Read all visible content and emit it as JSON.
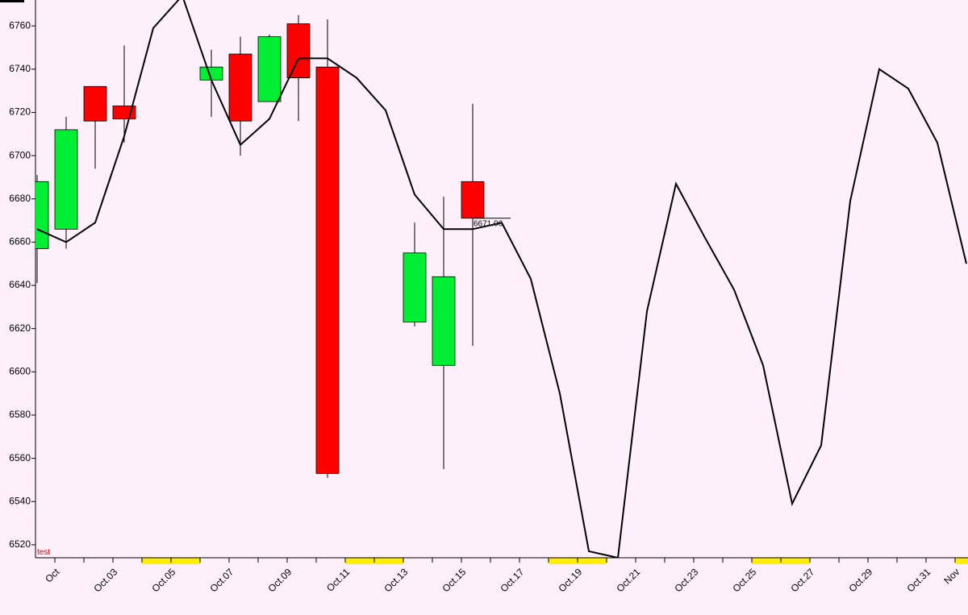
{
  "chart_data": {
    "type": "candlestick",
    "categories": [
      "Oct",
      null,
      "Oct.03",
      null,
      "Oct.05",
      null,
      "Oct.07",
      null,
      "Oct.09",
      null,
      "Oct.11",
      null,
      "Oct.13",
      null,
      "Oct.15",
      null,
      "Oct.17",
      null,
      "Oct.19",
      null,
      "Oct.21",
      null,
      "Oct.23",
      null,
      "Oct.25",
      null,
      "Oct.27",
      null,
      "Oct.29",
      null,
      "Oct.31",
      "Nov",
      null
    ],
    "open": [
      6657,
      6666,
      6732,
      6723,
      null,
      null,
      6735,
      6747,
      6725,
      6761,
      6741,
      null,
      null,
      6623,
      6603,
      6688,
      null,
      null,
      null,
      null,
      null,
      null,
      null,
      null,
      null,
      null,
      null,
      null,
      null,
      null,
      null,
      null,
      null
    ],
    "high": [
      6691,
      6718,
      6732,
      6751,
      null,
      null,
      6749,
      6755,
      6756,
      6765,
      6763,
      null,
      null,
      6669,
      6681,
      6724,
      null,
      null,
      null,
      null,
      null,
      null,
      null,
      null,
      null,
      null,
      null,
      null,
      null,
      null,
      null,
      null,
      null
    ],
    "low": [
      6641,
      6657,
      6694,
      6706,
      null,
      null,
      6718,
      6700,
      6725,
      6716,
      6551,
      null,
      null,
      6621,
      6555,
      6612,
      null,
      null,
      null,
      null,
      null,
      null,
      null,
      null,
      null,
      null,
      null,
      null,
      null,
      null,
      null,
      null,
      null
    ],
    "close": [
      6688,
      6712,
      6716,
      6717,
      null,
      null,
      6741,
      6716,
      6755,
      6736,
      6553,
      null,
      null,
      6655,
      6644,
      6671.06,
      null,
      null,
      null,
      null,
      null,
      null,
      null,
      null,
      null,
      null,
      null,
      null,
      null,
      null,
      null,
      null,
      null
    ],
    "up_color": "#00ee33",
    "down_color": "#ff0000",
    "line": {
      "color": "#000000",
      "values": [
        6666,
        6660,
        6669,
        6709,
        6759,
        6774,
        6735,
        6705,
        6717,
        6745,
        6745,
        6736,
        6721,
        6682,
        6666,
        6666,
        6669,
        6643,
        6590,
        6517,
        6514,
        6628,
        6687,
        6662,
        6638,
        6603,
        6539,
        6566,
        6679,
        6740,
        6731,
        6706,
        6650
      ]
    },
    "annotation": "6671.06",
    "label": "test",
    "ylim": [
      6514,
      6772
    ],
    "yticks": [
      6520,
      6540,
      6560,
      6580,
      6600,
      6620,
      6640,
      6660,
      6680,
      6700,
      6720,
      6740,
      6760
    ]
  }
}
